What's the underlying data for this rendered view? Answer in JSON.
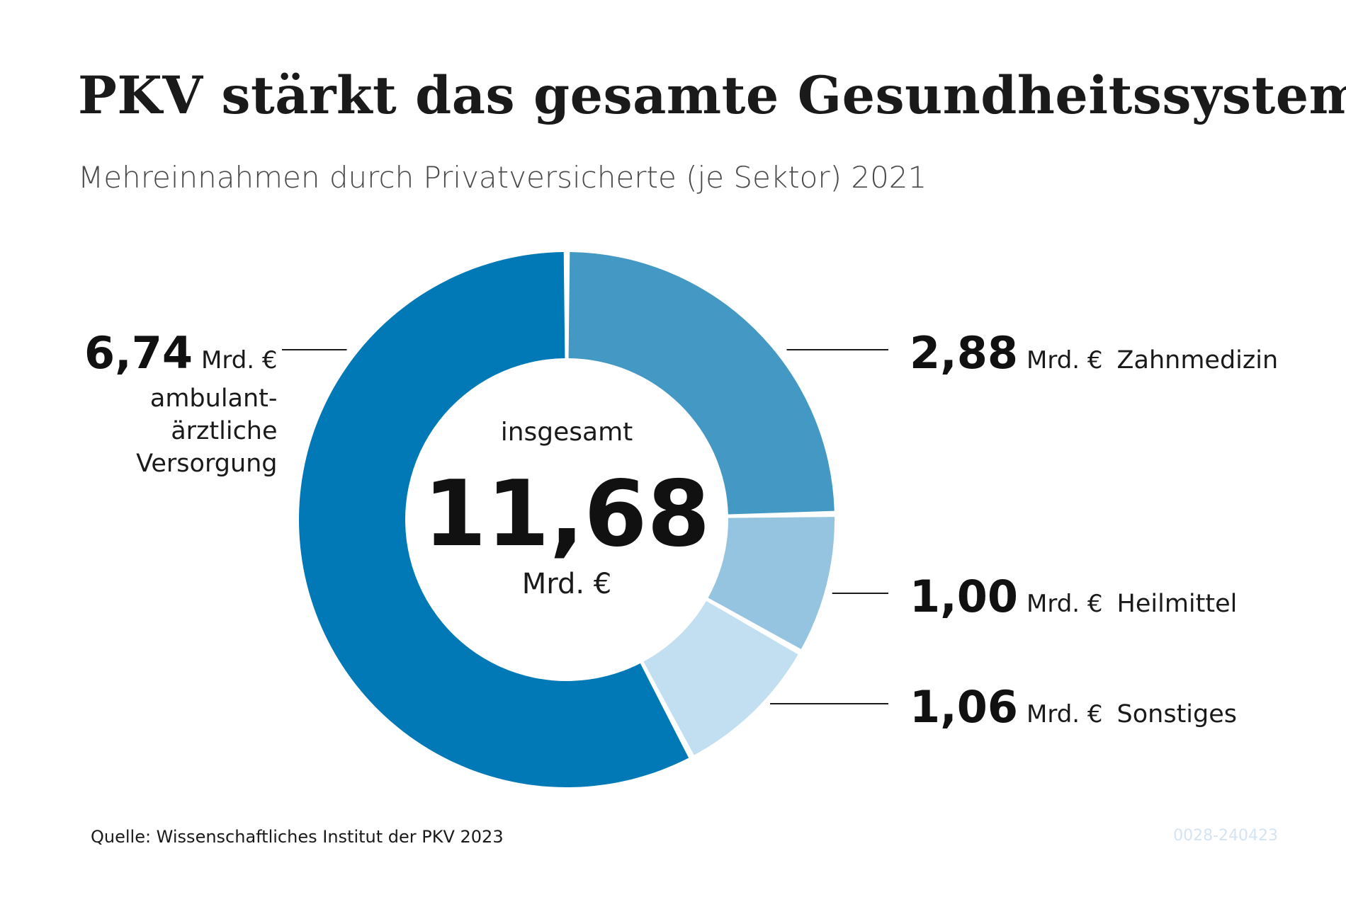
{
  "title": "PKV stärkt das gesamte Gesundheitssystem",
  "subtitle": "Mehreinnahmen durch Privatversicherte (je Sektor) 2021",
  "source": "Quelle: Wissenschaftliches Institut der PKV 2023",
  "code": "0028-240423",
  "center": {
    "caption": "insgesamt",
    "total": "11,68",
    "unit": "Mrd. €"
  },
  "chart_data": {
    "type": "pie",
    "title": "PKV stärkt das gesamte Gesundheitssystem",
    "subtitle": "Mehreinnahmen durch Privatversicherte (je Sektor) 2021",
    "unit": "Mrd. €",
    "total": 11.68,
    "slices": [
      {
        "label": "Zahnmedizin",
        "label_lines": [
          "Zahnmedizin"
        ],
        "value": 2.88,
        "value_text": "2,88",
        "color": "#4499c4"
      },
      {
        "label": "Heilmittel",
        "label_lines": [
          "Heilmittel"
        ],
        "value": 1.0,
        "value_text": "1,00",
        "color": "#94c4e0"
      },
      {
        "label": "Sonstiges",
        "label_lines": [
          "Sonstiges"
        ],
        "value": 1.06,
        "value_text": "1,06",
        "color": "#c2dff1"
      },
      {
        "label": "ambulant-ärztliche Versorgung",
        "label_lines": [
          "ambulant-",
          "ärztliche",
          "Versorgung"
        ],
        "value": 6.74,
        "value_text": "6,74",
        "color": "#0079b6"
      }
    ],
    "legend": "none"
  }
}
